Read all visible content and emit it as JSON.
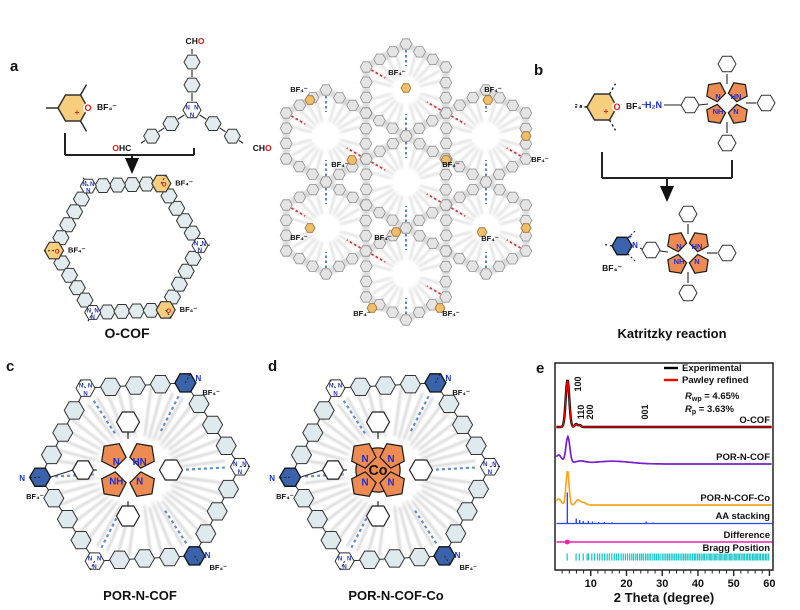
{
  "panels": {
    "a": {
      "letter": "a",
      "macrocycle_label": "O-COF"
    },
    "b": {
      "letter": "b",
      "caption": "Katritzky reaction"
    },
    "c": {
      "letter": "c",
      "caption": "POR-N-COF"
    },
    "d": {
      "letter": "d",
      "caption": "POR-N-COF-Co"
    },
    "e": {
      "letter": "e"
    }
  },
  "labels": {
    "bf4": "BF₄⁻",
    "cho": "CHO",
    "ohc": "OHC",
    "h2n": "H₂N",
    "o": "O",
    "plus": "+",
    "n": "N",
    "nh": "NH",
    "hn": "HN",
    "co": "Co"
  },
  "chart_data": {
    "type": "line",
    "title": "",
    "xlabel": "2 Theta (degree)",
    "ylabel": "",
    "xlim": [
      0,
      61
    ],
    "xticks": [
      10,
      20,
      30,
      40,
      50,
      60
    ],
    "minor_tick_step": 2,
    "grid": false,
    "legend_position": "top-right",
    "legend": [
      {
        "label": "Experimental",
        "color": "#000000"
      },
      {
        "label": "Pawley refined",
        "color": "#ff0000"
      }
    ],
    "refinement": {
      "rwp_pre": "R",
      "rwp_sub": "wp",
      "rwp_post": " = 4.65%",
      "rp_pre": "R",
      "rp_sub": "p",
      "rp_post": " = 3.63%"
    },
    "peak_labels": [
      "100",
      "110",
      "200",
      "001"
    ],
    "row_labels": [
      "O-COF",
      "POR-N-COF",
      "POR-N-COF-Co",
      "AA stacking",
      "Difference",
      "Bragg Position"
    ],
    "series": [
      {
        "name": "Experimental",
        "color": "#000000",
        "row": 0,
        "style": "line",
        "lw": 2.4,
        "peaks": [
          [
            3.5,
            47,
            0.5
          ],
          [
            5.9,
            3,
            0.35
          ],
          [
            6.9,
            2,
            0.35
          ]
        ]
      },
      {
        "name": "Pawley refined",
        "color": "#ff0000",
        "row": 0,
        "style": "line",
        "lw": 1.2,
        "peaks": [
          [
            3.5,
            46.5,
            0.5
          ],
          [
            5.9,
            2.8,
            0.35
          ],
          [
            6.9,
            1.8,
            0.35
          ]
        ]
      },
      {
        "name": "POR-N-COF",
        "color": "#7a1fd0",
        "row": 1,
        "style": "line",
        "lw": 1.7,
        "peaks": [
          [
            3.6,
            27,
            0.55
          ],
          [
            1.0,
            9,
            0.9
          ],
          [
            7.0,
            2.5,
            1.5
          ],
          [
            16,
            2.8,
            5
          ]
        ]
      },
      {
        "name": "POR-N-COF-Co",
        "color": "#ffa51e",
        "row": 2,
        "style": "line",
        "lw": 1.7,
        "peaks": [
          [
            3.5,
            34,
            0.42
          ],
          [
            1.0,
            6,
            0.7
          ],
          [
            6.4,
            5,
            0.6
          ],
          [
            7.9,
            2.5,
            0.7
          ]
        ]
      },
      {
        "name": "AA stacking",
        "color": "#2a47f0",
        "row": 3,
        "style": "sticks",
        "lw": 1.4,
        "sticks": [
          [
            3.45,
            31
          ],
          [
            5.95,
            5
          ],
          [
            6.9,
            3.5
          ],
          [
            7.9,
            2.5
          ],
          [
            9.3,
            2.5
          ],
          [
            10.5,
            2
          ],
          [
            12.2,
            1.5
          ],
          [
            13.8,
            1.5
          ],
          [
            16.0,
            1.2
          ],
          [
            25.5,
            2
          ],
          [
            27.5,
            1
          ]
        ]
      },
      {
        "name": "Difference",
        "color": "#f01fae",
        "row": 4,
        "style": "flat-dot",
        "lw": 1.5,
        "dot_x": 3.4
      },
      {
        "name": "Bragg Position",
        "color": "#1fc8c8",
        "row": 5,
        "style": "ticks",
        "lw": 1.3,
        "ticks": [
          3.4,
          5.9,
          6.8,
          7.9,
          9.0,
          9.4,
          10.3,
          11.1,
          11.9,
          12.5,
          13.2,
          13.9,
          14.6,
          15.2,
          15.9,
          16.6,
          17.2,
          17.8,
          18.5,
          19.1,
          19.7,
          20.3,
          20.9,
          21.5,
          22.0,
          22.6,
          23.1,
          23.7,
          24.2,
          24.7,
          25.3,
          25.8,
          26.3,
          26.8,
          27.4,
          27.9,
          28.4,
          28.9,
          29.4,
          30.0,
          30.5,
          31.0,
          31.5,
          32.0,
          32.5,
          33.0,
          33.5,
          34.0,
          34.5,
          35.0,
          35.5,
          36.0,
          36.5,
          37.0,
          37.5,
          38.0,
          38.5,
          39.0,
          39.4,
          39.9,
          40.4,
          40.9,
          41.4,
          41.8,
          42.3,
          42.8,
          43.3,
          43.7,
          44.2,
          44.7,
          45.1,
          45.6,
          46.1,
          46.5,
          47.0,
          47.5,
          47.9,
          48.4,
          48.9,
          49.3,
          49.8,
          50.3,
          50.7,
          51.2,
          51.6,
          52.1,
          52.6,
          53.0,
          53.5,
          53.9,
          54.4,
          54.8,
          55.3,
          55.7,
          56.2,
          56.6,
          57.1,
          57.5,
          58.0,
          58.4,
          58.9,
          59.3,
          59.8
        ]
      }
    ]
  }
}
